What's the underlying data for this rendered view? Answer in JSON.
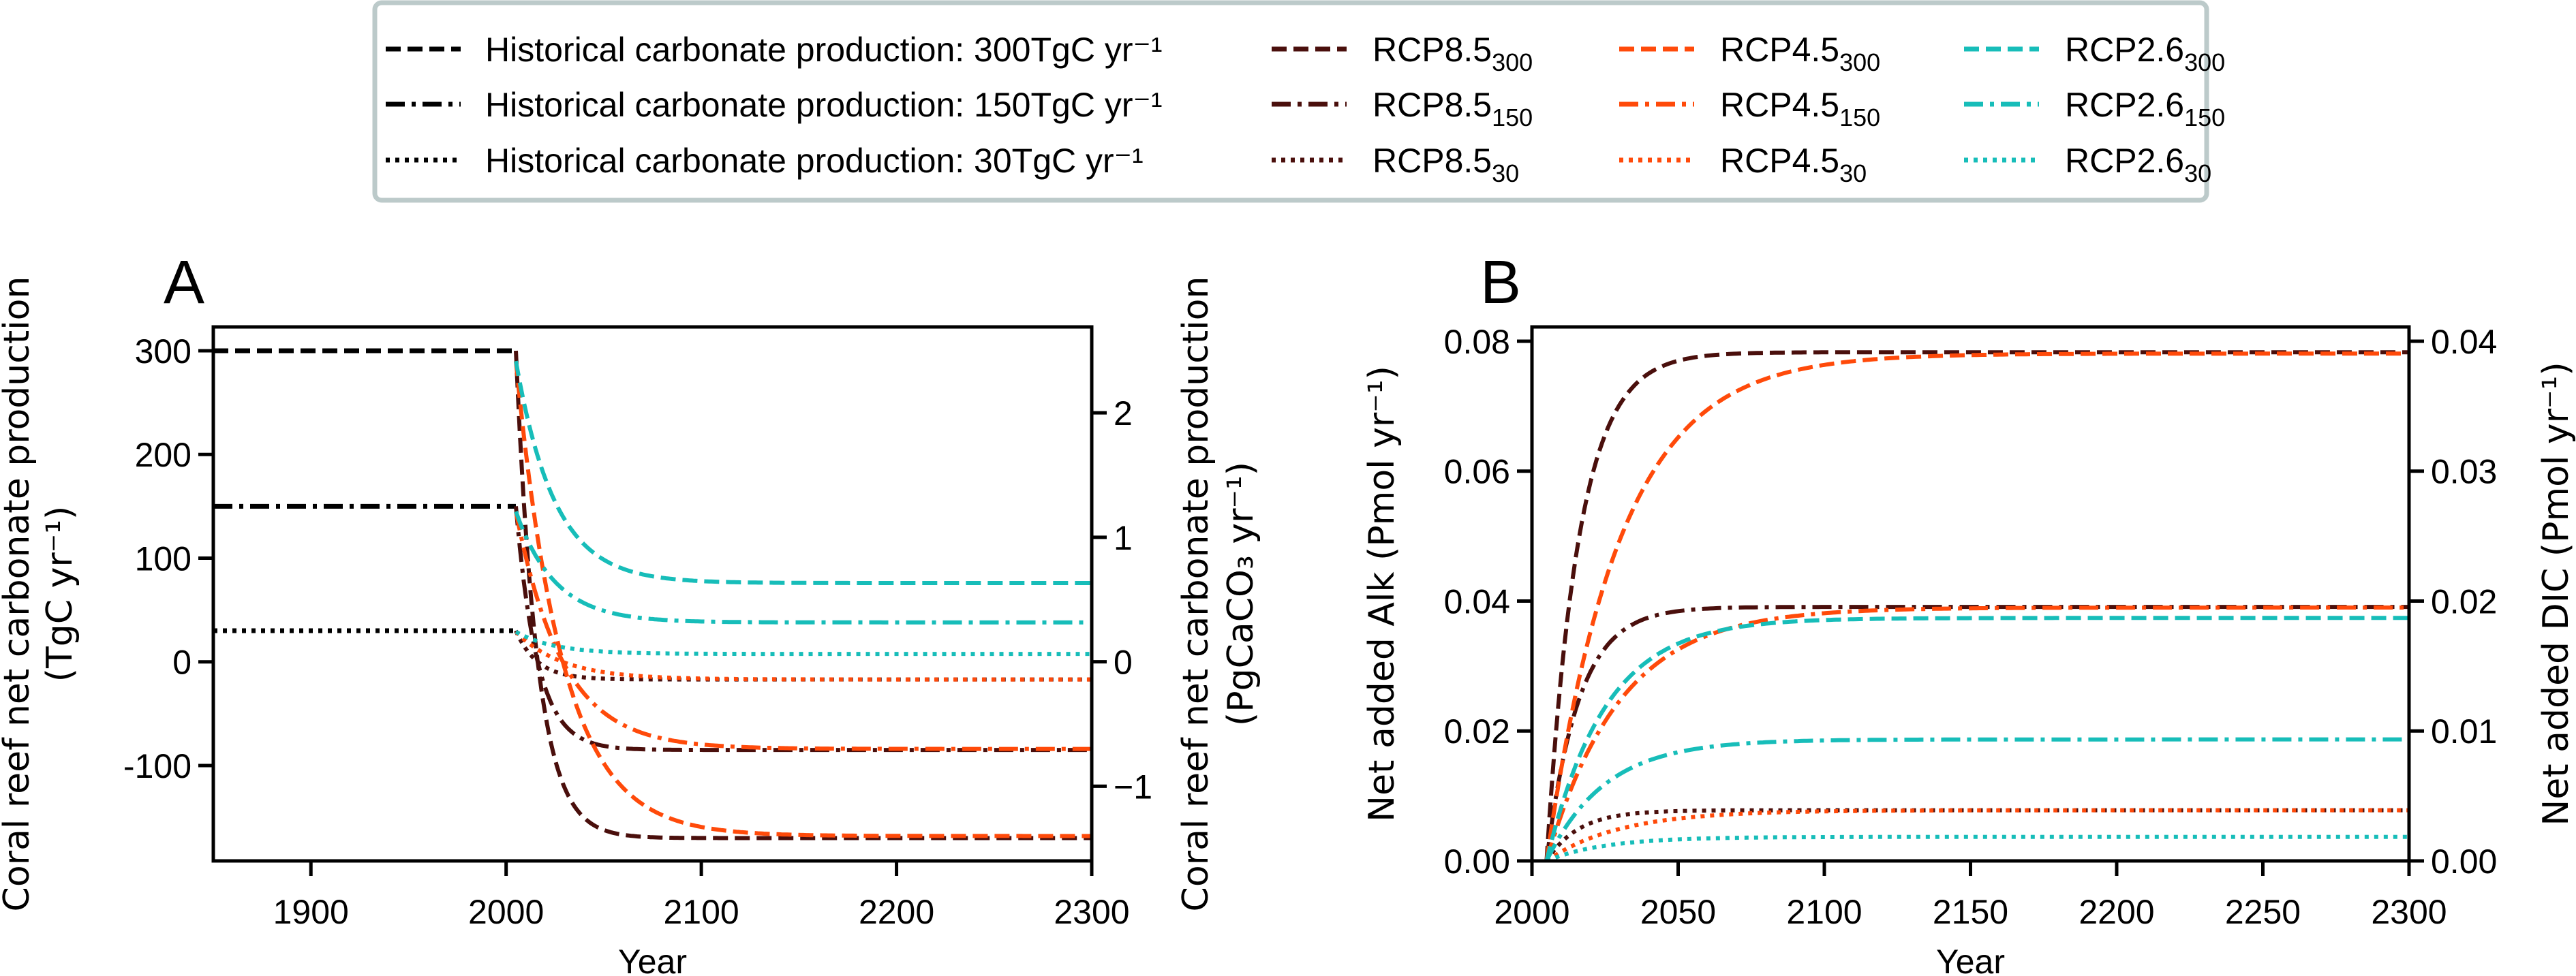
{
  "legend": {
    "historical": [
      {
        "label": "Historical carbonate production: 300TgC yr⁻¹",
        "style": "dashed"
      },
      {
        "label": "Historical carbonate production: 150TgC yr⁻¹",
        "style": "dashdot"
      },
      {
        "label": "Historical carbonate production: 30TgC yr⁻¹",
        "style": "dotted"
      }
    ],
    "scenarios": [
      {
        "name": "RCP8.5",
        "sub": "300",
        "color": "#4a0f0c",
        "style": "dashed"
      },
      {
        "name": "RCP8.5",
        "sub": "150",
        "color": "#4a0f0c",
        "style": "dashdot"
      },
      {
        "name": "RCP8.5",
        "sub": "30",
        "color": "#4a0f0c",
        "style": "dotted"
      },
      {
        "name": "RCP4.5",
        "sub": "300",
        "color": "#ff4a0a",
        "style": "dashed"
      },
      {
        "name": "RCP4.5",
        "sub": "150",
        "color": "#ff4a0a",
        "style": "dashdot"
      },
      {
        "name": "RCP4.5",
        "sub": "30",
        "color": "#ff4a0a",
        "style": "dotted"
      },
      {
        "name": "RCP2.6",
        "sub": "300",
        "color": "#17bdb9",
        "style": "dashed"
      },
      {
        "name": "RCP2.6",
        "sub": "150",
        "color": "#17bdb9",
        "style": "dashdot"
      },
      {
        "name": "RCP2.6",
        "sub": "30",
        "color": "#17bdb9",
        "style": "dotted"
      }
    ]
  },
  "chart_data": [
    {
      "panel": "A",
      "type": "line",
      "xlabel": "Year",
      "ylabel": [
        "Coral reef net carbonate production",
        "(TgC yr⁻¹)"
      ],
      "ylabel_right": [
        "Coral reef net carbonate production",
        "(PgCaCO₃ yr⁻¹)"
      ],
      "xlim": [
        1850,
        2300
      ],
      "ylim": [
        -192,
        323
      ],
      "ylim_right": [
        -1.6,
        2.69
      ],
      "xticks": [
        1900,
        2000,
        2100,
        2200,
        2300
      ],
      "yticks": [
        300,
        200,
        100,
        0,
        -100
      ],
      "ytick_labels": [
        "300",
        "200",
        "100",
        "0",
        "-100"
      ],
      "yticks_right": [
        2,
        1,
        0,
        -1
      ],
      "ytick_labels_right": [
        "2",
        "1",
        "0",
        "−1"
      ],
      "historical": [
        {
          "name": "Historical 300",
          "x": [
            1850,
            2005
          ],
          "y": [
            300,
            300
          ],
          "style": "dashed"
        },
        {
          "name": "Historical 150",
          "x": [
            1850,
            2005
          ],
          "y": [
            150,
            150
          ],
          "style": "dashdot"
        },
        {
          "name": "Historical 30",
          "x": [
            1850,
            2005
          ],
          "y": [
            30,
            30
          ],
          "style": "dotted"
        }
      ],
      "series": [
        {
          "name": "RCP8.5_300",
          "start_year": 2005,
          "start": 300,
          "end": -170,
          "decay_years": 11,
          "color": "#4a0f0c",
          "style": "dashed"
        },
        {
          "name": "RCP8.5_150",
          "start_year": 2005,
          "start": 150,
          "end": -85,
          "decay_years": 11,
          "color": "#4a0f0c",
          "style": "dashdot"
        },
        {
          "name": "RCP8.5_30",
          "start_year": 2005,
          "start": 30,
          "end": -17,
          "decay_years": 11,
          "color": "#4a0f0c",
          "style": "dotted"
        },
        {
          "name": "RCP4.5_300",
          "start_year": 2005,
          "start": 290,
          "end": -168,
          "decay_years": 24,
          "color": "#ff4a0a",
          "style": "dashed"
        },
        {
          "name": "RCP4.5_150",
          "start_year": 2005,
          "start": 145,
          "end": -84,
          "decay_years": 24,
          "color": "#ff4a0a",
          "style": "dashdot"
        },
        {
          "name": "RCP4.5_30",
          "start_year": 2005,
          "start": 29,
          "end": -17,
          "decay_years": 24,
          "color": "#ff4a0a",
          "style": "dotted"
        },
        {
          "name": "RCP2.6_300",
          "start_year": 2005,
          "start": 290,
          "end": 76,
          "decay_years": 20,
          "color": "#17bdb9",
          "style": "dashed"
        },
        {
          "name": "RCP2.6_150",
          "start_year": 2005,
          "start": 145,
          "end": 38,
          "decay_years": 20,
          "color": "#17bdb9",
          "style": "dashdot"
        },
        {
          "name": "RCP2.6_30",
          "start_year": 2005,
          "start": 29,
          "end": 7.6,
          "decay_years": 20,
          "color": "#17bdb9",
          "style": "dotted"
        }
      ]
    },
    {
      "panel": "B",
      "type": "line",
      "xlabel": "Year",
      "ylabel": "Net added Alk (Pmol yr⁻¹)",
      "ylabel_right": "Net added DIC (Pmol yr⁻¹)",
      "xlim": [
        2000,
        2300
      ],
      "ylim": [
        0,
        0.0822
      ],
      "ylim_right": [
        0,
        0.0411
      ],
      "xticks": [
        2000,
        2050,
        2100,
        2150,
        2200,
        2250,
        2300
      ],
      "yticks": [
        0,
        0.02,
        0.04,
        0.06,
        0.08
      ],
      "ytick_labels": [
        "0.00",
        "0.02",
        "0.04",
        "0.06",
        "0.08"
      ],
      "yticks_right": [
        0,
        0.01,
        0.02,
        0.03,
        0.04
      ],
      "ytick_labels_right": [
        "0.00",
        "0.01",
        "0.02",
        "0.03",
        "0.04"
      ],
      "series": [
        {
          "name": "RCP8.5_300",
          "start_year": 2005,
          "start": 0,
          "end": 0.0783,
          "decay_years": 11,
          "color": "#4a0f0c",
          "style": "dashed"
        },
        {
          "name": "RCP8.5_150",
          "start_year": 2005,
          "start": 0,
          "end": 0.0391,
          "decay_years": 11,
          "color": "#4a0f0c",
          "style": "dashdot"
        },
        {
          "name": "RCP8.5_30",
          "start_year": 2005,
          "start": 0,
          "end": 0.0078,
          "decay_years": 11,
          "color": "#4a0f0c",
          "style": "dotted"
        },
        {
          "name": "RCP4.5_300",
          "start_year": 2005,
          "start": 0,
          "end": 0.0781,
          "decay_years": 25,
          "color": "#ff4a0a",
          "style": "dashed"
        },
        {
          "name": "RCP4.5_150",
          "start_year": 2005,
          "start": 0,
          "end": 0.039,
          "decay_years": 25,
          "color": "#ff4a0a",
          "style": "dashdot"
        },
        {
          "name": "RCP4.5_30",
          "start_year": 2005,
          "start": 0,
          "end": 0.0078,
          "decay_years": 25,
          "color": "#ff4a0a",
          "style": "dotted"
        },
        {
          "name": "RCP2.6_300",
          "start_year": 2005,
          "start": 0,
          "end": 0.0374,
          "decay_years": 20,
          "color": "#17bdb9",
          "style": "dashed"
        },
        {
          "name": "RCP2.6_150",
          "start_year": 2005,
          "start": 0,
          "end": 0.0187,
          "decay_years": 20,
          "color": "#17bdb9",
          "style": "dashdot"
        },
        {
          "name": "RCP2.6_30",
          "start_year": 2005,
          "start": 0,
          "end": 0.0037,
          "decay_years": 20,
          "color": "#17bdb9",
          "style": "dotted"
        }
      ]
    }
  ],
  "panels": {
    "a_label": "A",
    "b_label": "B"
  }
}
